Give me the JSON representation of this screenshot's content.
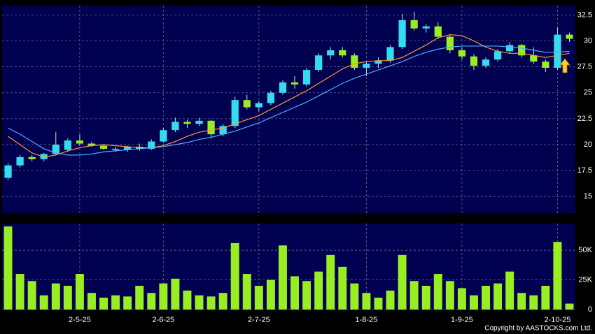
{
  "chart_data": {
    "type": "candlestick",
    "categories": [
      null,
      null,
      null,
      null,
      null,
      null,
      "2-5-25",
      null,
      null,
      null,
      null,
      null,
      null,
      "2-6-25",
      null,
      null,
      null,
      null,
      null,
      null,
      null,
      "2-7-25",
      null,
      null,
      null,
      null,
      null,
      null,
      null,
      null,
      "1-8-25",
      null,
      null,
      null,
      null,
      null,
      null,
      null,
      "1-9-25",
      null,
      null,
      null,
      null,
      null,
      null,
      null,
      "2-10-25",
      null
    ],
    "ohlc": [
      [
        16.8,
        18.2,
        16.6,
        18.0
      ],
      [
        18.0,
        19.0,
        17.8,
        18.8
      ],
      [
        18.8,
        19.0,
        18.4,
        18.6
      ],
      [
        18.6,
        19.2,
        18.4,
        19.1
      ],
      [
        19.1,
        21.2,
        19.0,
        20.0
      ],
      [
        19.5,
        20.6,
        19.3,
        20.4
      ],
      [
        20.4,
        21.0,
        19.9,
        20.1
      ],
      [
        20.1,
        20.3,
        19.8,
        19.9
      ],
      [
        19.9,
        20.0,
        19.5,
        19.6
      ],
      [
        19.6,
        19.8,
        19.3,
        19.5
      ],
      [
        19.5,
        19.9,
        19.3,
        19.8
      ],
      [
        19.8,
        20.1,
        19.4,
        19.6
      ],
      [
        19.6,
        20.5,
        19.5,
        20.3
      ],
      [
        20.3,
        21.6,
        20.2,
        21.4
      ],
      [
        21.4,
        22.6,
        21.2,
        22.2
      ],
      [
        22.2,
        22.4,
        21.6,
        22.0
      ],
      [
        22.0,
        22.6,
        21.8,
        22.3
      ],
      [
        22.3,
        22.4,
        20.6,
        21.0
      ],
      [
        21.0,
        22.0,
        20.8,
        21.8
      ],
      [
        21.8,
        24.6,
        21.6,
        24.3
      ],
      [
        24.3,
        24.8,
        23.4,
        23.6
      ],
      [
        23.6,
        24.2,
        23.2,
        24.0
      ],
      [
        24.0,
        25.2,
        23.8,
        25.0
      ],
      [
        25.0,
        26.2,
        24.8,
        26.0
      ],
      [
        26.0,
        26.6,
        25.4,
        25.8
      ],
      [
        25.8,
        27.4,
        25.6,
        27.2
      ],
      [
        27.2,
        28.8,
        27.0,
        28.6
      ],
      [
        28.6,
        29.4,
        28.2,
        29.1
      ],
      [
        29.1,
        29.4,
        28.4,
        28.6
      ],
      [
        28.6,
        28.8,
        27.2,
        27.4
      ],
      [
        27.4,
        28.0,
        26.6,
        27.8
      ],
      [
        27.8,
        28.4,
        27.4,
        28.1
      ],
      [
        28.1,
        29.6,
        27.9,
        29.4
      ],
      [
        29.4,
        32.6,
        29.2,
        32.0
      ],
      [
        32.0,
        32.8,
        31.0,
        31.2
      ],
      [
        31.2,
        31.6,
        30.8,
        31.4
      ],
      [
        31.4,
        31.8,
        30.2,
        30.4
      ],
      [
        30.4,
        30.6,
        28.8,
        29.1
      ],
      [
        29.1,
        29.4,
        28.2,
        28.5
      ],
      [
        28.5,
        28.7,
        27.2,
        27.6
      ],
      [
        27.6,
        28.4,
        27.4,
        28.2
      ],
      [
        28.2,
        29.2,
        28.0,
        29.0
      ],
      [
        29.0,
        29.9,
        28.8,
        29.6
      ],
      [
        29.6,
        29.7,
        28.4,
        28.6
      ],
      [
        28.6,
        29.4,
        27.8,
        28.0
      ],
      [
        28.0,
        28.2,
        27.0,
        27.4
      ],
      [
        27.4,
        31.3,
        27.2,
        30.6
      ],
      [
        30.6,
        30.8,
        29.9,
        30.2
      ]
    ],
    "up_color": "#33ddee",
    "down_color": "#99ee22",
    "series": [
      {
        "color": "#ff9933",
        "values": [
          20.8,
          20.0,
          19.2,
          18.8,
          19.0,
          19.4,
          19.7,
          19.9,
          20.0,
          19.9,
          19.8,
          19.7,
          19.7,
          19.9,
          20.3,
          20.8,
          21.2,
          21.4,
          21.6,
          22.0,
          22.4,
          22.8,
          23.4,
          24.0,
          24.6,
          25.2,
          25.9,
          26.6,
          27.3,
          27.8,
          28.0,
          28.1,
          28.1,
          28.4,
          29.0,
          29.6,
          30.3,
          30.6,
          30.5,
          30.0,
          29.4,
          29.0,
          28.8,
          28.8,
          28.6,
          28.4,
          28.6,
          28.8
        ]
      },
      {
        "color": "#55aaff",
        "values": [
          21.6,
          21.0,
          20.3,
          19.6,
          19.2,
          19.0,
          19.0,
          19.1,
          19.3,
          19.4,
          19.5,
          19.6,
          19.7,
          19.8,
          20.0,
          20.2,
          20.5,
          20.7,
          21.0,
          21.3,
          21.7,
          22.1,
          22.6,
          23.1,
          23.6,
          24.1,
          24.7,
          25.3,
          25.9,
          26.4,
          26.8,
          27.2,
          27.6,
          28.0,
          28.5,
          28.9,
          29.2,
          29.4,
          29.5,
          29.5,
          29.5,
          29.5,
          29.4,
          29.3,
          29.1,
          28.9,
          28.9,
          29.0
        ]
      }
    ],
    "ylim": [
      13.4,
      33.4
    ],
    "yticks": [
      15,
      17.5,
      20,
      22.5,
      25,
      27.5,
      30,
      32.5
    ],
    "grid": true,
    "volume": {
      "color": "#99ee22",
      "values": [
        70000,
        30000,
        24000,
        12000,
        22000,
        20000,
        30000,
        14000,
        10000,
        12000,
        11000,
        20000,
        14000,
        22000,
        26000,
        16000,
        12000,
        11000,
        14000,
        56000,
        30000,
        20000,
        25000,
        54000,
        28000,
        24000,
        32000,
        46000,
        36000,
        22000,
        14000,
        10000,
        16000,
        46000,
        24000,
        20000,
        30000,
        24000,
        18000,
        12000,
        20000,
        22000,
        32000,
        14000,
        12000,
        20000,
        57000,
        5000
      ],
      "ylim": [
        0,
        72400
      ],
      "yticks": [
        0,
        {
          "value": 25000,
          "label": "25K"
        },
        {
          "value": 50000,
          "label": "50K"
        }
      ]
    },
    "copyright": "Copyright by AASTOCKS.com Ltd."
  }
}
